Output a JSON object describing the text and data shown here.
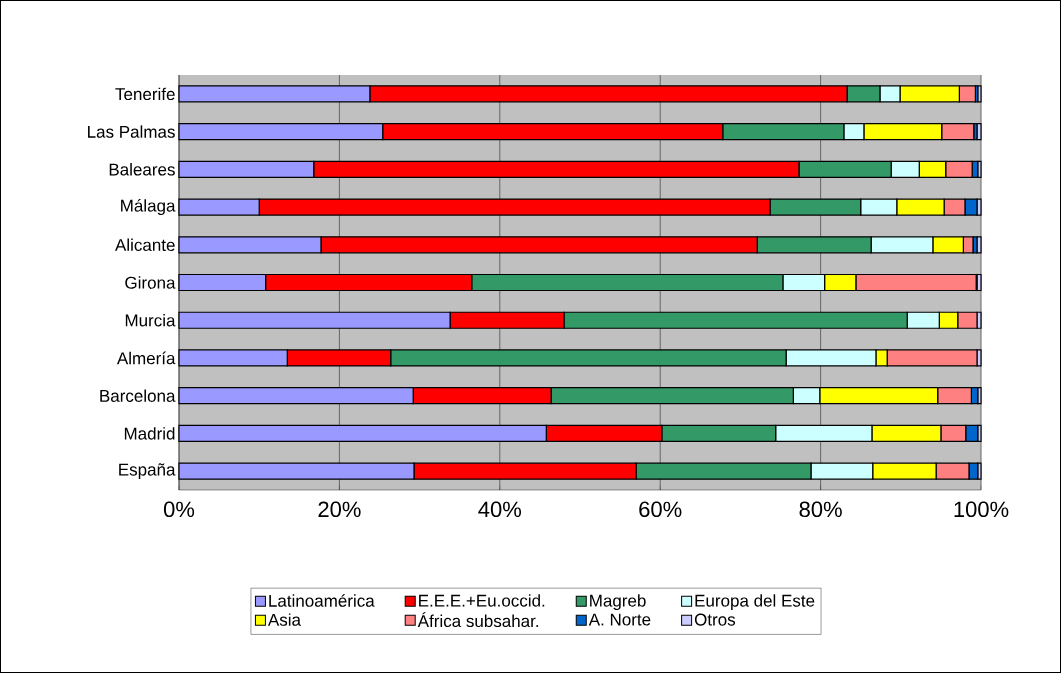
{
  "chart_data": {
    "type": "bar",
    "orientation": "horizontal",
    "stacked": true,
    "categories": [
      "Tenerife",
      "Las Palmas",
      "Baleares",
      "Málaga",
      "Alicante",
      "Girona",
      "Murcia",
      "Almería",
      "Barcelona",
      "Madrid",
      "España"
    ],
    "series": [
      {
        "name": "Latinoamérica",
        "color": "#9999ff",
        "values": [
          23.8,
          25.4,
          16.8,
          10.0,
          17.7,
          10.8,
          33.8,
          13.5,
          29.2,
          45.8,
          29.3
        ]
      },
      {
        "name": "E.E.E.+Eu.occid.",
        "color": "#ff0000",
        "values": [
          59.5,
          42.4,
          60.5,
          63.7,
          54.4,
          25.7,
          14.2,
          12.9,
          17.2,
          14.4,
          27.7
        ]
      },
      {
        "name": "Magreb",
        "color": "#339966",
        "values": [
          4.1,
          15.1,
          11.5,
          11.3,
          14.2,
          38.8,
          42.8,
          49.3,
          30.2,
          14.2,
          21.8
        ]
      },
      {
        "name": "Europa del Este",
        "color": "#ccffff",
        "values": [
          2.5,
          2.5,
          3.5,
          4.5,
          7.7,
          5.2,
          4.0,
          11.2,
          3.3,
          12.0,
          7.7
        ]
      },
      {
        "name": "Asia",
        "color": "#ffff00",
        "values": [
          7.4,
          9.7,
          3.3,
          5.9,
          3.8,
          3.9,
          2.3,
          1.4,
          14.7,
          8.6,
          7.9
        ]
      },
      {
        "name": "África subsahar.",
        "color": "#ff8080",
        "values": [
          2.0,
          4.0,
          3.3,
          2.6,
          1.2,
          15.0,
          2.4,
          11.2,
          4.2,
          3.1,
          4.1
        ]
      },
      {
        "name": "A. Norte",
        "color": "#0066cc",
        "values": [
          0.3,
          0.4,
          0.7,
          1.5,
          0.5,
          0.1,
          0.0,
          0.0,
          0.8,
          1.5,
          1.1
        ]
      },
      {
        "name": "Otros",
        "color": "#ccccff",
        "values": [
          0.4,
          0.5,
          0.4,
          0.5,
          0.5,
          0.5,
          0.5,
          0.5,
          0.4,
          0.4,
          0.4
        ]
      }
    ],
    "xlim": [
      0,
      100
    ],
    "xticks": [
      {
        "value": 0,
        "label": "0%"
      },
      {
        "value": 20,
        "label": "20%"
      },
      {
        "value": 40,
        "label": "40%"
      },
      {
        "value": 60,
        "label": "60%"
      },
      {
        "value": 80,
        "label": "80%"
      },
      {
        "value": 100,
        "label": "100%"
      }
    ],
    "grid": "x",
    "legend": "bottom"
  }
}
